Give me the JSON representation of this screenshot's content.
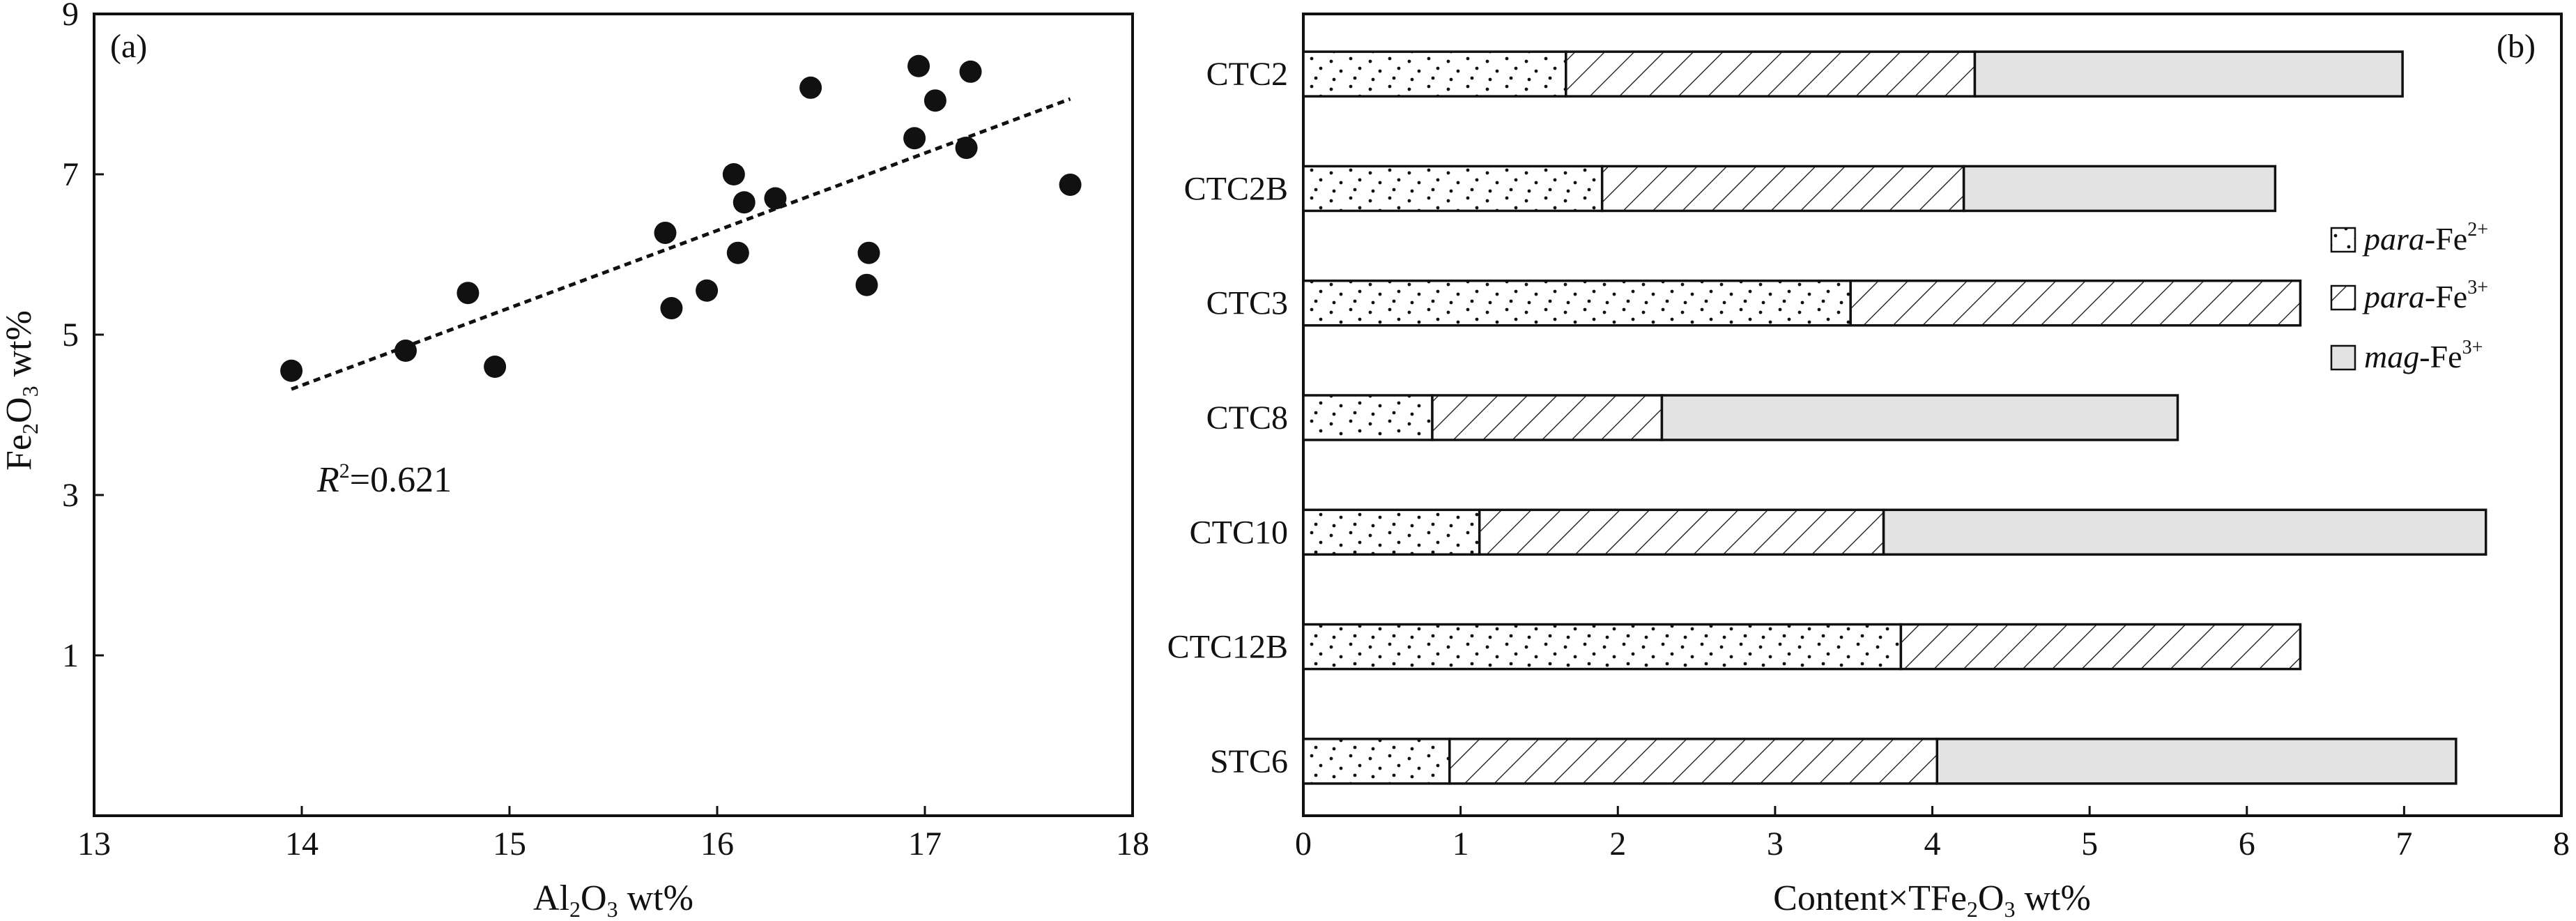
{
  "chart_data": [
    {
      "type": "scatter",
      "panel_label": "(a)",
      "xlabel": {
        "base": "Al",
        "sub1": "2",
        "mid": "O",
        "sub2": "3",
        "tail": " wt%"
      },
      "ylabel": {
        "base": "Fe",
        "sub1": "2",
        "mid": "O",
        "sub2": "3",
        "tail": " wt%"
      },
      "xlim": [
        13,
        18
      ],
      "ylim": [
        -1,
        9
      ],
      "xticks": [
        "13",
        "14",
        "15",
        "16",
        "17",
        "18"
      ],
      "yticks": [
        "1",
        "3",
        "5",
        "7",
        "9"
      ],
      "points": [
        {
          "x": 13.95,
          "y": 4.55
        },
        {
          "x": 14.5,
          "y": 4.8
        },
        {
          "x": 14.8,
          "y": 5.52
        },
        {
          "x": 14.93,
          "y": 4.6
        },
        {
          "x": 15.75,
          "y": 6.27
        },
        {
          "x": 15.78,
          "y": 5.33
        },
        {
          "x": 15.95,
          "y": 5.55
        },
        {
          "x": 16.08,
          "y": 7.0
        },
        {
          "x": 16.1,
          "y": 6.02
        },
        {
          "x": 16.13,
          "y": 6.65
        },
        {
          "x": 16.28,
          "y": 6.7
        },
        {
          "x": 16.45,
          "y": 8.08
        },
        {
          "x": 16.72,
          "y": 5.62
        },
        {
          "x": 16.73,
          "y": 6.02
        },
        {
          "x": 16.95,
          "y": 7.45
        },
        {
          "x": 16.97,
          "y": 8.35
        },
        {
          "x": 17.05,
          "y": 7.92
        },
        {
          "x": 17.2,
          "y": 7.33
        },
        {
          "x": 17.22,
          "y": 8.28
        },
        {
          "x": 17.7,
          "y": 6.87
        }
      ],
      "fit_line": {
        "x1": 13.95,
        "y1": 4.32,
        "x2": 17.7,
        "y2": 7.94
      },
      "r2_label": {
        "symbol": "R",
        "sup": "2",
        "value": "=0.621"
      }
    },
    {
      "type": "bar",
      "orientation": "horizontal",
      "stacked": true,
      "panel_label": "(b)",
      "xlabel": {
        "base": "Content×TFe",
        "sub1": "2",
        "mid": "O",
        "sub2": "3",
        "tail": " wt%"
      },
      "xlim": [
        0,
        8
      ],
      "xticks": [
        "0",
        "1",
        "2",
        "3",
        "4",
        "5",
        "6",
        "7",
        "8"
      ],
      "categories": [
        "CTC2",
        "CTC2B",
        "CTC3",
        "CTC8",
        "CTC10",
        "CTC12B",
        "STC6"
      ],
      "series": [
        {
          "name": "para-Fe2+",
          "legend": {
            "italic": "para",
            "rest": "-Fe",
            "sup": "2+"
          },
          "pattern": "dots",
          "values": [
            1.67,
            1.9,
            3.48,
            0.82,
            1.12,
            3.8,
            0.93
          ]
        },
        {
          "name": "para-Fe3+",
          "legend": {
            "italic": "para",
            "rest": "-Fe",
            "sup": "3+"
          },
          "pattern": "hatch",
          "values": [
            2.6,
            2.3,
            2.86,
            1.46,
            2.57,
            2.54,
            3.1
          ]
        },
        {
          "name": "mag-Fe3+",
          "legend": {
            "italic": "mag",
            "rest": "-Fe",
            "sup": "3+"
          },
          "pattern": "gray",
          "values": [
            2.72,
            1.98,
            0.0,
            3.28,
            3.83,
            0.0,
            3.3
          ]
        }
      ],
      "legend_position": "right",
      "colors": {
        "mag_fill": "#e3e3e3",
        "edge": "#111111"
      }
    }
  ]
}
